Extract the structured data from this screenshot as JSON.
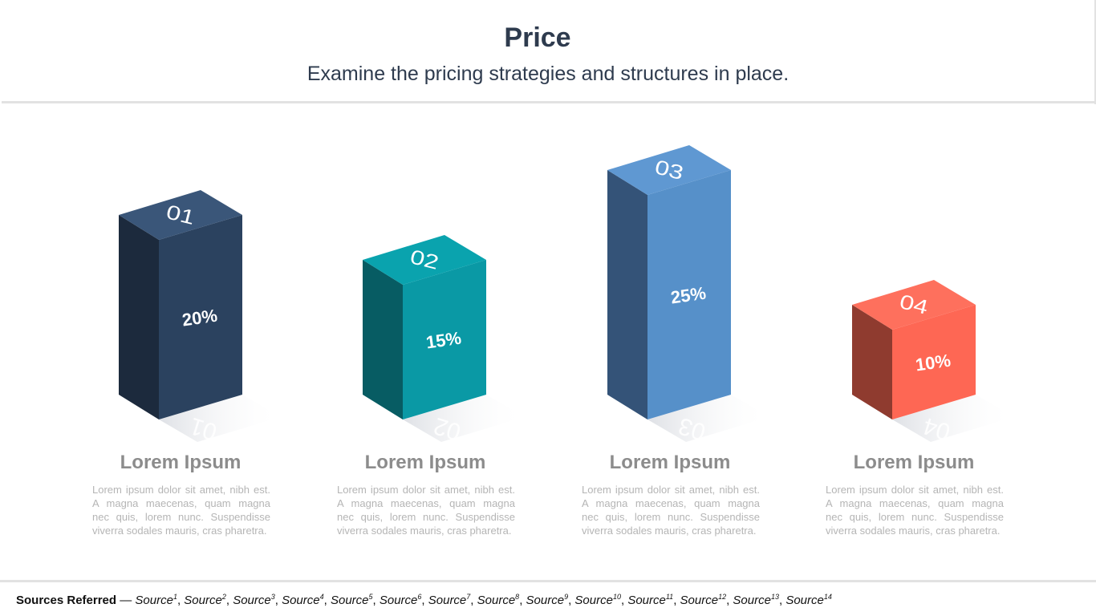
{
  "header": {
    "title": "Price",
    "subtitle": "Examine the pricing strategies and structures in place."
  },
  "columns": [
    {
      "number": "01",
      "percent": "20%",
      "value": 20,
      "title": "Lorem Ipsum",
      "description": "Lorem ipsum dolor sit amet, nibh est. A magna maecenas, quam magna nec quis, lorem nunc. Suspendisse viverra sodales mauris, cras pharetra.",
      "colors": {
        "front": "#2b425f",
        "side": "#1c2a3d",
        "top": "#3a5679"
      }
    },
    {
      "number": "02",
      "percent": "15%",
      "value": 15,
      "title": "Lorem Ipsum",
      "description": "Lorem ipsum dolor sit amet, nibh est. A magna maecenas, quam magna nec quis, lorem nunc. Suspendisse viverra sodales mauris, cras pharetra.",
      "colors": {
        "front": "#0a99a5",
        "side": "#075c63",
        "top": "#0aa3ae"
      }
    },
    {
      "number": "03",
      "percent": "25%",
      "value": 25,
      "title": "Lorem Ipsum",
      "description": "Lorem ipsum dolor sit amet, nibh est. A magna maecenas, quam magna nec quis, lorem nunc. Suspendisse viverra sodales mauris, cras pharetra.",
      "colors": {
        "front": "#5690c9",
        "side": "#345378",
        "top": "#5f98d2"
      }
    },
    {
      "number": "04",
      "percent": "10%",
      "value": 10,
      "title": "Lorem Ipsum",
      "description": "Lorem ipsum dolor sit amet, nibh est. A magna maecenas, quam magna nec quis, lorem nunc. Suspendisse viverra sodales mauris, cras pharetra.",
      "colors": {
        "front": "#fe6754",
        "side": "#8f3b2f",
        "top": "#fe705d"
      }
    }
  ],
  "footer": {
    "label": "Sources Referred",
    "dash": "—",
    "source_word": "Source",
    "count": 14
  }
}
